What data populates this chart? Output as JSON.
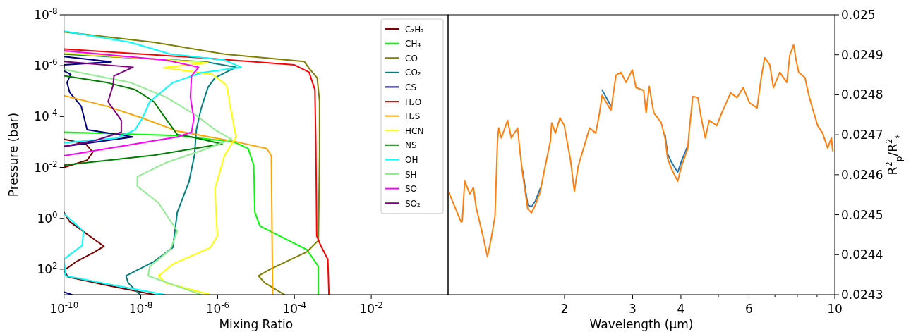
{
  "chart_data": [
    {
      "type": "line",
      "xlabel": "Mixing Ratio",
      "ylabel": "Pressure (bar)",
      "log": "xy",
      "legend": "top right",
      "xlim": [
        1e-10,
        1
      ],
      "ylim": [
        1000,
        1e-08
      ],
      "xticks": [
        {
          "value": 1e-10,
          "label": "10$^{-10}$"
        },
        {
          "value": 1e-08,
          "label": "10$^{-8}$"
        },
        {
          "value": 1e-06,
          "label": "10$^{-6}$"
        },
        {
          "value": 0.0001,
          "label": "10$^{-4}$"
        },
        {
          "value": 0.01,
          "label": "10$^{-2}$"
        }
      ],
      "yticks": [
        {
          "value": 1e-08,
          "label": "10$^{-8}$"
        },
        {
          "value": 1e-06,
          "label": "10$^{-6}$"
        },
        {
          "value": 0.0001,
          "label": "10$^{-4}$"
        },
        {
          "value": 0.01,
          "label": "10$^{-2}$"
        },
        {
          "value": 1,
          "label": "10$^{0}$"
        },
        {
          "value": 100,
          "label": "10$^{2}$"
        }
      ],
      "series": [
        {
          "name": "C₂H₂",
          "color": "#800000",
          "x": [
            1e-10,
            3.7e-10,
            5.6e-10,
            4e-10,
            1e-10,
            null,
            1e-10,
            1.4e-10,
            1.1e-09,
            6.3e-10,
            2.1e-10,
            1e-10,
            1.26e-10,
            1.3e-09,
            2.2e-08
          ],
          "values": [
            0.00078,
            0.0012,
            0.0025,
            0.0052,
            0.01,
            null,
            0.58,
            1.35,
            12.6,
            21,
            50,
            112,
            200,
            427,
            1000
          ]
        },
        {
          "name": "CH₄",
          "color": "#00ff00",
          "x": [
            1e-10,
            8.9e-08,
            2.6e-06,
            6.2e-06,
            8.7e-06,
            9.3e-06,
            1.26e-05,
            0.00021,
            0.00042,
            0.00042
          ],
          "values": [
            0.00041,
            0.00056,
            0.00098,
            0.0018,
            0.0081,
            0.58,
            2.0,
            17,
            78,
            1000
          ]
        },
        {
          "name": "CO",
          "color": "#808000",
          "x": [
            1e-10,
            2.2e-08,
            1.5e-06,
            0.00018,
            0.00024,
            0.00039,
            0.00045,
            0.00045,
            0.00042,
            0.00021,
            2.5e-05,
            1.15e-05,
            1.7e-05,
            5.5e-05
          ],
          "values": [
            4.7e-08,
            1.2e-07,
            3.5e-07,
            6.8e-07,
            1.26e-06,
            3e-06,
            2.5e-05,
            0.0032,
            7.4,
            21,
            95,
            182,
            347,
            1000
          ]
        },
        {
          "name": "CO₂",
          "color": "#008080",
          "x": [
            1e-10,
            4.9e-07,
            3e-06,
            8.5e-07,
            5.6e-07,
            3.7e-07,
            2.8e-07,
            2.5e-07,
            1.8e-07,
            8.9e-08,
            6.8e-08,
            2.2e-08,
            4.1e-09,
            4.7e-09,
            9.5e-09
          ],
          "values": [
            3.5e-07,
            7.1e-07,
            1.15e-06,
            3e-06,
            7.1e-06,
            4.9e-05,
            0.00033,
            0.0032,
            0.036,
            0.58,
            14,
            50,
            182,
            347,
            1000
          ]
        },
        {
          "name": "CS",
          "color": "#000080",
          "x": [
            1e-10,
            1.7e-09,
            1e-10,
            1e-10,
            1.5e-10,
            1.2e-10,
            1.4e-10,
            2.8e-10,
            4e-10,
            6.2e-09,
            1e-10,
            null,
            1e-10,
            1.6e-10
          ],
          "values": [
            4.4e-07,
            7.1e-07,
            9.3e-07,
            1.6e-06,
            2.2e-06,
            4.6e-06,
            1.1e-05,
            3.9e-05,
            0.00033,
            0.00063,
            0.0015,
            null,
            794,
            1000
          ]
        },
        {
          "name": "H₂O",
          "color": "#ff0000",
          "x": [
            1e-10,
            3.7e-07,
            0.0001,
            0.00024,
            0.00034,
            0.00036,
            0.00038,
            0.00048,
            0.00074,
            0.00079
          ],
          "values": [
            2.2e-07,
            4.9e-07,
            9.3e-07,
            1.8e-06,
            8.7e-06,
            0.001,
            5.0,
            11.5,
            41,
            1000
          ]
        },
        {
          "name": "H₂S",
          "color": "#ffa500",
          "x": [
            1e-10,
            1.3e-09,
            1.1e-08,
            8.9e-08,
            3e-06,
            1.9e-05,
            2.5e-05,
            2.7e-05
          ],
          "values": [
            1.5e-05,
            3.9e-05,
            0.000115,
            0.00037,
            0.00098,
            0.0018,
            0.0035,
            1000
          ]
        },
        {
          "name": "HCN",
          "color": "#ffff00",
          "x": [
            1e-10,
            5.6e-07,
            3.9e-08,
            7.4e-07,
            1.7e-06,
            2.3e-06,
            3e-06,
            1.5e-06,
            8.5e-07,
            9.8e-07,
            6.5e-07,
            6.8e-08,
            2.9e-08,
            4.5e-08,
            6.5e-07
          ],
          "values": [
            3.2e-07,
            7.6e-07,
            1.2e-06,
            2.2e-06,
            5.8e-06,
            7.4e-05,
            0.00063,
            0.0035,
            0.068,
            4.9,
            14,
            63,
            182,
            347,
            1000
          ]
        },
        {
          "name": "NS",
          "color": "#008000",
          "x": [
            1e-10,
            1.3e-09,
            7.1e-09,
            2.2e-08,
            3.9e-08,
            8.9e-08,
            2.1e-07,
            1.3e-06,
            2.2e-08,
            1e-10
          ],
          "values": [
            2.5e-06,
            4.6e-06,
            8.7e-06,
            2.6e-05,
            9.1e-05,
            0.00051,
            0.00063,
            0.0012,
            0.0033,
            0.0081
          ]
        },
        {
          "name": "OH",
          "color": "#00ffff",
          "x": [
            1e-10,
            5.4e-09,
            5.9e-08,
            1.5e-06,
            4.1e-06,
            3.7e-07,
            6.8e-08,
            1.7e-08,
            1.1e-08,
            7.1e-09,
            2.3e-09,
            1e-10,
            null,
            1e-10,
            3.2e-10,
            3e-10,
            1.4e-10,
            1e-10,
            1.1e-10,
            1.3e-09,
            4.2e-08
          ],
          "values": [
            4.4e-08,
            1.2e-07,
            3.5e-07,
            6e-07,
            1.15e-06,
            1.9e-06,
            4.6e-06,
            2.6e-05,
            0.000115,
            0.00033,
            0.00071,
            0.00107,
            null,
            0.65,
            3.2,
            11.5,
            27,
            41,
            182,
            380,
            1000
          ]
        },
        {
          "name": "SH",
          "color": "#90ee90",
          "x": [
            1e-10,
            5.4e-09,
            4.5e-08,
            2.8e-07,
            8.5e-07,
            2.3e-06,
            3.7e-07,
            4.5e-08,
            8.1e-09,
            8.1e-09,
            2.9e-08,
            8.9e-08,
            5.9e-08,
            1.7e-08,
            1.55e-08,
            3.7e-07
          ],
          "values": [
            1.4e-06,
            4.6e-06,
            1.7e-05,
            9.1e-05,
            0.00033,
            0.00078,
            0.0022,
            0.0065,
            0.023,
            0.055,
            0.25,
            3.2,
            17,
            78,
            182,
            1000
          ]
        },
        {
          "name": "SO",
          "color": "#ff00ff",
          "x": [
            1e-10,
            4.5e-08,
            3.2e-07,
            2.1e-07,
            1.95e-07,
            2.4e-07,
            2.1e-07,
            8.9e-08,
            1e-10
          ],
          "values": [
            2.6e-07,
            6e-07,
            1.15e-06,
            2.5e-06,
            1.7e-05,
            0.000115,
            0.00041,
            0.00063,
            0.0035
          ]
        },
        {
          "name": "SO₂",
          "color": "#800080",
          "x": [
            1e-10,
            6.3e-09,
            2e-09,
            1.9e-09,
            1.4e-09,
            3.1e-09,
            3.1e-09,
            6.5e-10,
            1e-10
          ],
          "values": [
            6.8e-07,
            1.15e-06,
            2.5e-06,
            5.8e-06,
            2.6e-05,
            0.00014,
            0.00041,
            0.00087,
            0.0015
          ]
        }
      ]
    },
    {
      "type": "line",
      "xlabel": "Wavelength (μm)",
      "y2label": "R$^{2}$$_{p}$/R$^{2}$$_{*}$",
      "log": "x",
      "xlim": [
        1,
        10
      ],
      "y2lim": [
        0.0243,
        0.025
      ],
      "xticks": [
        2,
        3,
        4,
        {
          "value": 5,
          "label": null
        },
        6,
        {
          "value": 7,
          "label": null
        },
        {
          "value": 8,
          "label": null
        },
        {
          "value": 9,
          "label": null
        },
        10
      ],
      "y2ticks": [
        0.0243,
        0.0244,
        0.0245,
        0.0246,
        0.0247,
        0.0248,
        0.0249,
        0.025
      ],
      "x": [
        1.005,
        1.079,
        1.088,
        1.104,
        1.138,
        1.163,
        1.181,
        1.236,
        1.264,
        1.292,
        1.322,
        1.342,
        1.352,
        1.373,
        1.425,
        1.457,
        1.513,
        1.536,
        1.559,
        1.607,
        1.643,
        1.681,
        1.732,
        1.772,
        1.839,
        1.853,
        1.895,
        1.947,
        1.997,
        2.074,
        2.121,
        2.169,
        2.269,
        2.322,
        2.409,
        2.464,
        2.502,
        2.636,
        2.718,
        2.8,
        2.884,
        2.995,
        3.062,
        3.204,
        3.252,
        3.312,
        3.402,
        3.558,
        3.64,
        3.696,
        3.78,
        3.925,
        4.013,
        4.166,
        4.198,
        4.294,
        4.424,
        4.526,
        4.628,
        4.734,
        4.952,
        5.104,
        5.379,
        5.584,
        5.797,
        6.018,
        6.297,
        6.439,
        6.586,
        6.786,
        6.941,
        7.206,
        7.515,
        7.653,
        7.825,
        7.943,
        8.065,
        8.372,
        8.565,
        8.824,
        9.027,
        9.299,
        9.585,
        9.799,
        9.874
      ],
      "series": [
        {
          "color": "#1f77b4",
          "axis": "y2",
          "values": [
            null,
            null,
            null,
            null,
            null,
            null,
            null,
            null,
            null,
            null,
            null,
            null,
            null,
            null,
            null,
            null,
            null,
            null,
            0.02461,
            0.024524,
            0.02452,
            0.024534,
            0.024566,
            null,
            null,
            null,
            null,
            null,
            null,
            null,
            null,
            null,
            null,
            null,
            null,
            null,
            0.024812,
            0.024772,
            null,
            null,
            null,
            null,
            null,
            null,
            null,
            null,
            null,
            null,
            0.0247,
            0.024652,
            0.024632,
            0.024606,
            0.024634,
            0.024672,
            null,
            null,
            null,
            null,
            null,
            null,
            null,
            null,
            null,
            null,
            null,
            null,
            null,
            null,
            null,
            null,
            null,
            null,
            null,
            null,
            null,
            null,
            null,
            null,
            null,
            null,
            null,
            null,
            null,
            null,
            null
          ]
        },
        {
          "color": "#ff7f0e",
          "axis": "y2",
          "values": [
            0.024555,
            0.024483,
            0.024483,
            0.024584,
            0.024552,
            0.024568,
            0.02452,
            0.024439,
            0.024395,
            0.024439,
            0.024495,
            0.024684,
            0.024717,
            0.024692,
            0.024736,
            0.024692,
            0.024717,
            0.024654,
            0.024602,
            0.024514,
            0.024505,
            0.024524,
            0.024558,
            0.024609,
            0.024684,
            0.02473,
            0.024704,
            0.024742,
            0.024723,
            0.024635,
            0.024558,
            0.024621,
            0.024684,
            0.024717,
            0.024704,
            0.024755,
            0.024799,
            0.024761,
            0.024849,
            0.024856,
            0.024831,
            0.024862,
            0.024818,
            0.024811,
            0.024755,
            0.024821,
            0.024755,
            0.02473,
            0.024692,
            0.024641,
            0.024615,
            0.024584,
            0.024621,
            0.024665,
            0.024704,
            0.024796,
            0.024793,
            0.024736,
            0.024692,
            0.024736,
            0.024723,
            0.024755,
            0.024805,
            0.024793,
            0.024818,
            0.02478,
            0.024767,
            0.024837,
            0.024893,
            0.024875,
            0.024818,
            0.024856,
            0.024831,
            0.0249,
            0.024925,
            0.024887,
            0.024856,
            0.024843,
            0.024799,
            0.024755,
            0.024723,
            0.024704,
            0.024667,
            0.024692,
            0.02466
          ]
        }
      ]
    }
  ]
}
